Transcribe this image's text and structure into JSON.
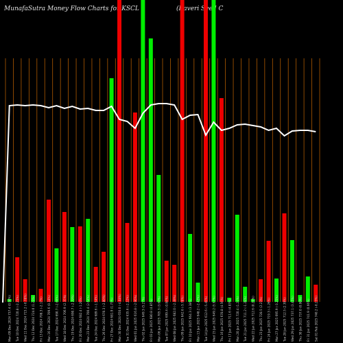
{
  "header": {
    "title": "MunafaSutra  Money Flow  Charts for KSCL",
    "subtitle": "(Kaveri   Seed   C"
  },
  "colors": {
    "background": "#000000",
    "grid": "#b05a00",
    "up": "#00ee00",
    "down": "#ee0000",
    "line": "#ffffff",
    "label": "#cfcfcf"
  },
  "chart_data": {
    "type": "bar",
    "title": "MunafaSutra  Money Flow  Charts for KSCL",
    "subtitle": "(Kaveri   Seed   C",
    "grid": true,
    "ylim": [
      0,
      440
    ],
    "bars": [
      {
        "label": "Mon 09 Dec 2024 737.4 (0.90%)",
        "color": "green",
        "value": 4
      },
      {
        "label": "Tue 10 Dec 2024 720.8 (-2.25%)",
        "color": "red",
        "value": 65
      },
      {
        "label": "Wed 11 Dec 2024 715.2 (-0.78%)",
        "color": "red",
        "value": 33
      },
      {
        "label": "Thu 12 Dec 2024 724.0 (1.23%)",
        "color": "green",
        "value": 10
      },
      {
        "label": "Fri 13 Dec 2024 708.3 (-2.17%)",
        "color": "red",
        "value": 19
      },
      {
        "label": "Mon 16 Dec 2024 709.6 (0.18%)",
        "color": "red",
        "value": 149
      },
      {
        "label": "Tue 17 Dec 2024 690.7 (-2.66%)",
        "color": "green",
        "value": 78
      },
      {
        "label": "Wed 18 Dec 2024 706.9 (2.35%)",
        "color": "red",
        "value": 131
      },
      {
        "label": "Thu 19 Dec 2024 690.7 (-2.29%)",
        "color": "green",
        "value": 109
      },
      {
        "label": "Fri 20 Dec 2024 682.4 (-1.20%)",
        "color": "red",
        "value": 110
      },
      {
        "label": "Mon 23 Dec 2024 700.4 (2.64%)",
        "color": "green",
        "value": 121
      },
      {
        "label": "Tue 24 Dec 2024 689.6 (-1.54%)",
        "color": "red",
        "value": 51
      },
      {
        "label": "Thu 26 Dec 2024 670.3 (-2.80%)",
        "color": "red",
        "value": 73
      },
      {
        "label": "Fri 27 Dec 2024 681.9 (1.73%)",
        "color": "green",
        "value": 326
      },
      {
        "label": "Mon 30 Dec 2024 650.0 (-4.68%)",
        "color": "red",
        "value": 440
      },
      {
        "label": "Tue 31 Dec 2024 635.6 (-2.22%)",
        "color": "red",
        "value": 115
      },
      {
        "label": "Wed 01 Jan 2025 616.8 (-2.96%)",
        "color": "red",
        "value": 276
      },
      {
        "label": "Thu 02 Jan 2025 649.3 (5.27%)",
        "color": "green",
        "value": 440
      },
      {
        "label": "Fri 03 Jan 2025 680.8 (4.85%)",
        "color": "green",
        "value": 384
      },
      {
        "label": "Mon 06 Jan 2025 705.3 (3.60%)",
        "color": "green",
        "value": 185
      },
      {
        "label": "Tue 07 Jan 2025 699.4 (-0.84%)",
        "color": "red",
        "value": 60
      },
      {
        "label": "Wed 08 Jan 2025 682.0 (-2.49%)",
        "color": "red",
        "value": 54
      },
      {
        "label": "Thu 09 Jan 2025 642.6 (-5.78%)",
        "color": "red",
        "value": 440
      },
      {
        "label": "Fri 10 Jan 2025 664.3 (3.38%)",
        "color": "green",
        "value": 99
      },
      {
        "label": "Mon 13 Jan 2025 648.2 (-2.42%)",
        "color": "green",
        "value": 28
      },
      {
        "label": "Tue 14 Jan 2025 612.6 (-5.49%)",
        "color": "red",
        "value": 440
      },
      {
        "label": "Wed 15 Jan 2025 649.2 (5.97%)",
        "color": "green",
        "value": 440
      },
      {
        "label": "Thu 16 Jan 2025 678.8 (4.56%)",
        "color": "red",
        "value": 297
      },
      {
        "label": "Fri 17 Jan 2025 711.6 (4.83%)",
        "color": "green",
        "value": 6
      },
      {
        "label": "Mon 20 Jan 2025 720.4 (1.24%)",
        "color": "green",
        "value": 127
      },
      {
        "label": "Tue 21 Jan 2025 711.2 (-1.28%)",
        "color": "green",
        "value": 22
      },
      {
        "label": "Wed 22 Jan 2025 712.6 (0.20%)",
        "color": "green",
        "value": 4
      },
      {
        "label": "Thu 23 Jan 2025 728.5 (2.23%)",
        "color": "red",
        "value": 33
      },
      {
        "label": "Fri 24 Jan 2025 719.3 (-1.26%)",
        "color": "red",
        "value": 89
      },
      {
        "label": "Mon 27 Jan 2025 695.9 (-3.25%)",
        "color": "green",
        "value": 34
      },
      {
        "label": "Tue 28 Jan 2025 712.5 (2.39%)",
        "color": "red",
        "value": 129
      },
      {
        "label": "Wed 29 Jan 2025 737.1 (3.45%)",
        "color": "green",
        "value": 90
      },
      {
        "label": "Thu 30 Jan 2025 737.0 (0.00%)",
        "color": "green",
        "value": 10
      },
      {
        "label": "Fri 31 Jan 2025 741.9 (0.66%)",
        "color": "green",
        "value": 37
      },
      {
        "label": "Sat 01 Feb 2025 740.2 (-0.23%)",
        "color": "red",
        "value": 25
      }
    ],
    "line": [
      286,
      287,
      286,
      287,
      286,
      283,
      286,
      282,
      285,
      281,
      282,
      279,
      279,
      285,
      266,
      263,
      253,
      275,
      287,
      289,
      289,
      287,
      266,
      272,
      273,
      243,
      262,
      250,
      253,
      258,
      259,
      257,
      255,
      250,
      253,
      242,
      249,
      250,
      250,
      248
    ]
  }
}
